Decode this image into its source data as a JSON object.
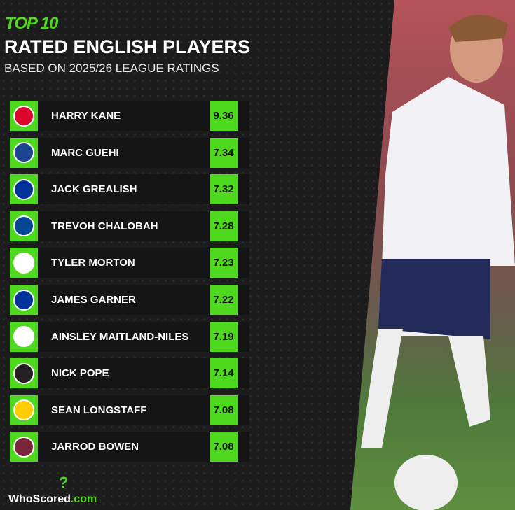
{
  "header": {
    "top": "TOP 10",
    "title": "RATED ENGLISH PLAYERS",
    "subtitle": "BASED ON 2025/26 LEAGUE RATINGS"
  },
  "accent": "#4fd91e",
  "players": [
    {
      "name": "HARRY KANE",
      "rating": "9.36",
      "club_color": "#dc052d"
    },
    {
      "name": "MARC GUEHI",
      "rating": "7.34",
      "club_color": "#1b458f"
    },
    {
      "name": "JACK GREALISH",
      "rating": "7.32",
      "club_color": "#003399"
    },
    {
      "name": "TREVOH CHALOBAH",
      "rating": "7.28",
      "club_color": "#034694"
    },
    {
      "name": "TYLER MORTON",
      "rating": "7.23",
      "club_color": "#ffffff"
    },
    {
      "name": "JAMES GARNER",
      "rating": "7.22",
      "club_color": "#003399"
    },
    {
      "name": "AINSLEY MAITLAND-NILES",
      "rating": "7.19",
      "club_color": "#ffffff"
    },
    {
      "name": "NICK POPE",
      "rating": "7.14",
      "club_color": "#241f20"
    },
    {
      "name": "SEAN LONGSTAFF",
      "rating": "7.08",
      "club_color": "#ffcd00"
    },
    {
      "name": "JARROD BOWEN",
      "rating": "7.08",
      "club_color": "#7a263a"
    }
  ],
  "logo": {
    "text": "WhoScored",
    "suffix": ".com",
    "mark": "?"
  }
}
